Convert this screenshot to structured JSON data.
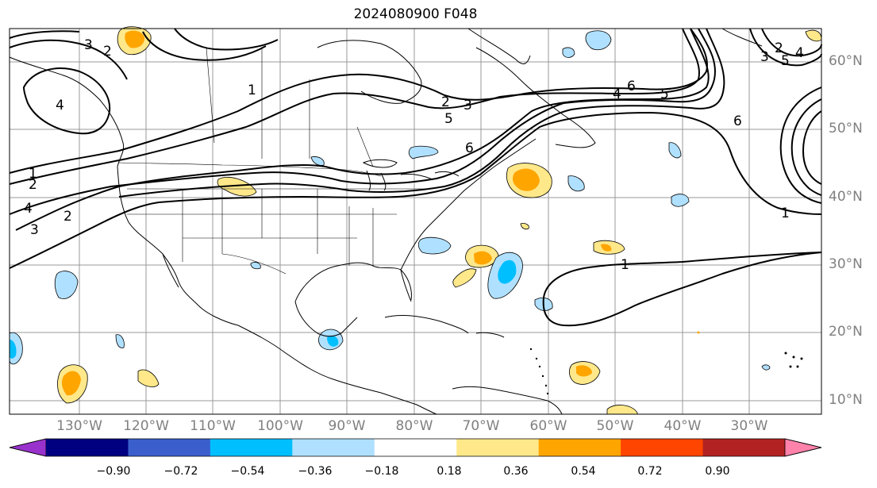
{
  "title": "2024080900 F048",
  "lat_labels": [
    "60°N",
    "50°N",
    "40°N",
    "30°N",
    "20°N",
    "10°N"
  ],
  "lon_labels": [
    "130°W",
    "120°W",
    "110°W",
    "100°W",
    "90°W",
    "80°W",
    "70°W",
    "60°W",
    "50°W",
    "40°W",
    "30°W"
  ],
  "colorbar": {
    "ticks": [
      "−0.90",
      "−0.72",
      "−0.54",
      "−0.36",
      "−0.18",
      "0.18",
      "0.36",
      "0.54",
      "0.72",
      "0.90"
    ],
    "colors": [
      "#9932cc",
      "#000080",
      "#3a5fcd",
      "#00bfff",
      "#b0e0ff",
      "#ffffff",
      "#ffe88a",
      "#ffa500",
      "#ff4500",
      "#b22222",
      "#ff82ab"
    ]
  },
  "contour_labels": [
    "1",
    "2",
    "3",
    "4",
    "5",
    "6"
  ],
  "colors": {
    "positive_light": "#ffe88a",
    "positive_mid": "#ffa500",
    "negative_light": "#b0e0ff",
    "negative_mid": "#00bfff",
    "gridline": "#999999",
    "axis_text": "#808080"
  }
}
